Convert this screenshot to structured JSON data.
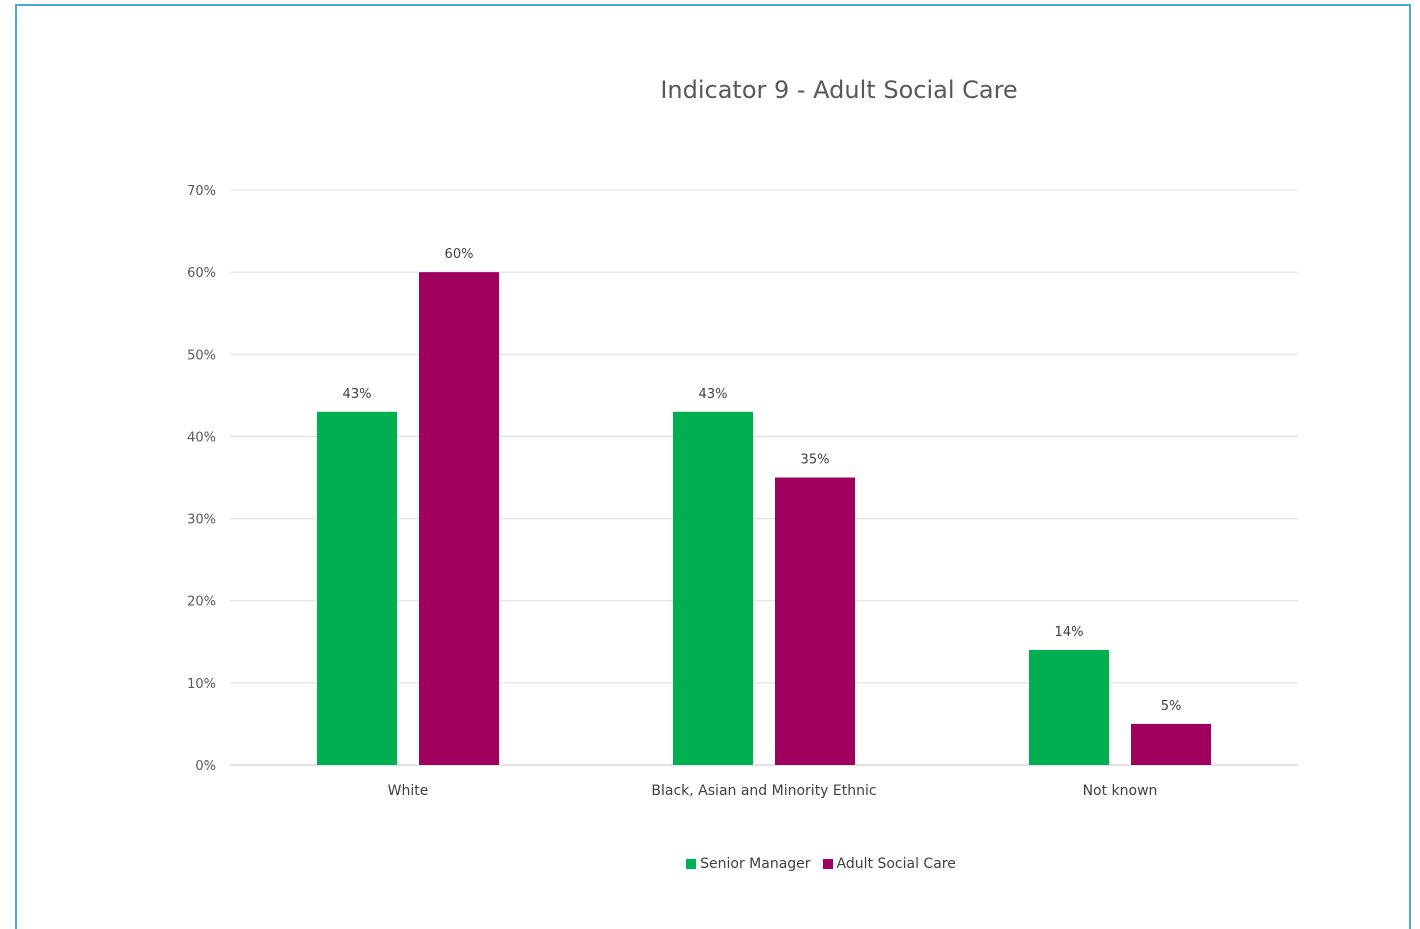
{
  "chart_data": {
    "type": "bar",
    "title": "Indicator 9 - Adult Social Care",
    "categories": [
      "White",
      "Black, Asian and Minority Ethnic",
      "Not known"
    ],
    "series": [
      {
        "name": "Senior Manager",
        "color": "#00b050",
        "values": [
          43,
          43,
          14
        ],
        "labels": [
          "43%",
          "43%",
          "14%"
        ]
      },
      {
        "name": "Adult Social Care",
        "color": "#a0005e",
        "values": [
          60,
          35,
          5
        ],
        "labels": [
          "60%",
          "35%",
          "5%"
        ]
      }
    ],
    "ylim": [
      0,
      70
    ],
    "yticks": [
      "0%",
      "10%",
      "20%",
      "30%",
      "40%",
      "50%",
      "60%",
      "70%"
    ],
    "grid": true,
    "legend_position": "bottom"
  }
}
